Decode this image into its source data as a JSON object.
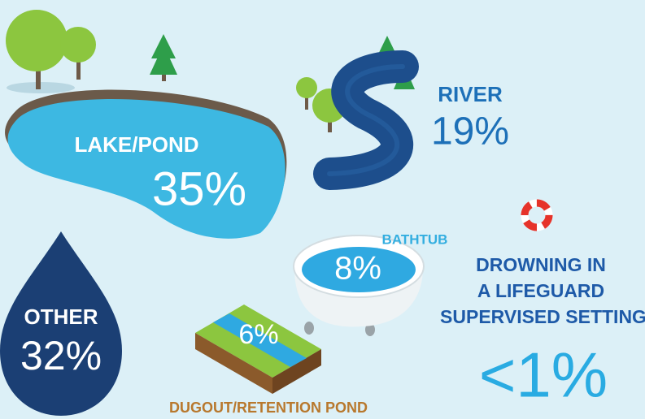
{
  "items": [
    {
      "label": "LAKE/POND",
      "value": "35%"
    },
    {
      "label": "RIVER",
      "value": "19%"
    },
    {
      "label": "OTHER",
      "value": "32%"
    },
    {
      "label": "BATHTUB",
      "value": "8%"
    },
    {
      "label": "DUGOUT/RETENTION POND",
      "value": "6%"
    }
  ],
  "lifeguard": {
    "lines": [
      "DROWNING IN",
      "A LIFEGUARD",
      "SUPERVISED SETTING"
    ],
    "value": "<1%"
  }
}
